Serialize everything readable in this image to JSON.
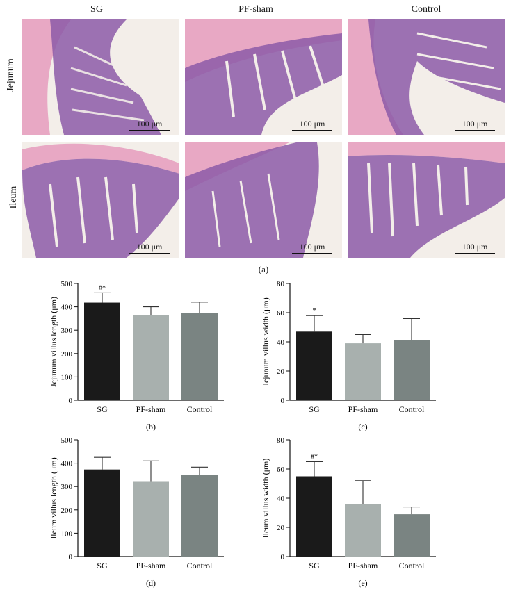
{
  "histology": {
    "columns": [
      "SG",
      "PF-sham",
      "Control"
    ],
    "rows": [
      "Jejunum",
      "Ileum"
    ],
    "scale_bar": "100 μm",
    "panel_label": "(a)"
  },
  "colors": {
    "tissue_bg": "#f4f1ec",
    "stain_pink": "#e6a3c0",
    "stain_purple": "#8a5aa6",
    "stain_dark": "#5a3a85"
  },
  "chart_data": [
    {
      "id": "b",
      "type": "bar",
      "panel_label": "(b)",
      "categories": [
        "SG",
        "PF-sham",
        "Control"
      ],
      "values": [
        418,
        365,
        375
      ],
      "errors": [
        42,
        35,
        45
      ],
      "annotations": [
        "#*",
        "",
        ""
      ],
      "ylabel": "Jejunum villus length (μm)",
      "ylim": [
        0,
        500
      ],
      "yticks": [
        0,
        100,
        200,
        300,
        400,
        500
      ],
      "colors": [
        "#1a1a1a",
        "#a8b0ae",
        "#7a8482"
      ]
    },
    {
      "id": "c",
      "type": "bar",
      "panel_label": "(c)",
      "categories": [
        "SG",
        "PF-sham",
        "Control"
      ],
      "values": [
        47,
        39,
        41
      ],
      "errors": [
        11,
        6,
        15
      ],
      "annotations": [
        "*",
        "",
        ""
      ],
      "ylabel": "Jejunum villus width (μm)",
      "ylim": [
        0,
        80
      ],
      "yticks": [
        0,
        20,
        40,
        60,
        80
      ],
      "colors": [
        "#1a1a1a",
        "#a8b0ae",
        "#7a8482"
      ]
    },
    {
      "id": "d",
      "type": "bar",
      "panel_label": "(d)",
      "categories": [
        "SG",
        "PF-sham",
        "Control"
      ],
      "values": [
        373,
        320,
        350
      ],
      "errors": [
        52,
        90,
        33
      ],
      "annotations": [
        "",
        "",
        ""
      ],
      "ylabel": "Ileum villus length (μm)",
      "ylim": [
        0,
        500
      ],
      "yticks": [
        0,
        100,
        200,
        300,
        400,
        500
      ],
      "colors": [
        "#1a1a1a",
        "#a8b0ae",
        "#7a8482"
      ]
    },
    {
      "id": "e",
      "type": "bar",
      "panel_label": "(e)",
      "categories": [
        "SG",
        "PF-sham",
        "Control"
      ],
      "values": [
        55,
        36,
        29
      ],
      "errors": [
        10,
        16,
        5
      ],
      "annotations": [
        "#*",
        "",
        ""
      ],
      "ylabel": "Ileum villus width (μm)",
      "ylim": [
        0,
        80
      ],
      "yticks": [
        0,
        20,
        40,
        60,
        80
      ],
      "colors": [
        "#1a1a1a",
        "#a8b0ae",
        "#7a8482"
      ]
    }
  ]
}
